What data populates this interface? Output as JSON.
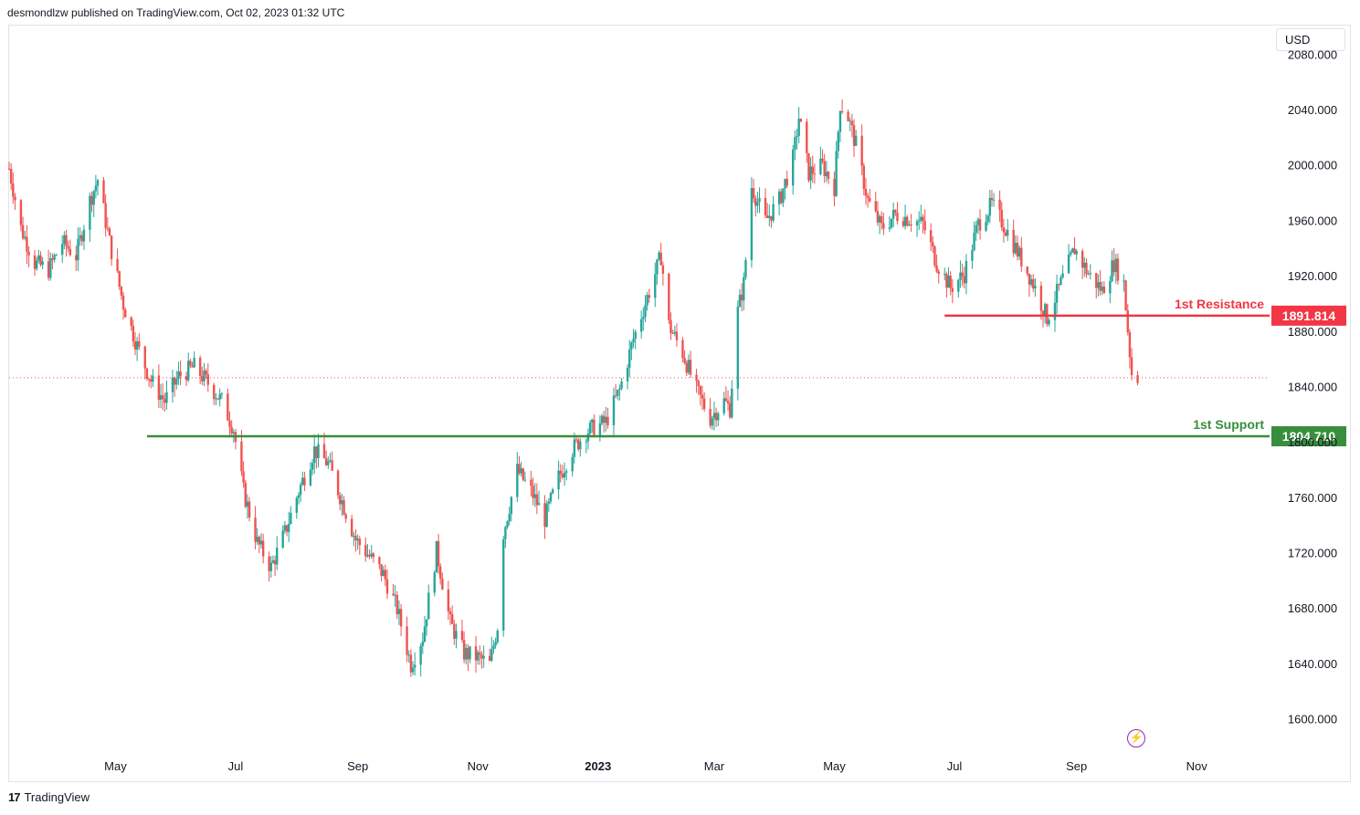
{
  "header": {
    "text": "desmondlzw published on TradingView.com, Oct 02, 2023 01:32 UTC"
  },
  "currency": {
    "label": "USD"
  },
  "footer": {
    "brand": "TradingView",
    "logo_glyph": "17"
  },
  "colors": {
    "up": "#26a69a",
    "down": "#ef5350",
    "resistance": "#f23645",
    "support": "#388e3c",
    "last_price": "#ef5350",
    "axis_text": "#131722",
    "icon": "#9c27b0"
  },
  "icons": {
    "bolt": "lightning-icon"
  },
  "chart_data": {
    "type": "candlestick",
    "title": "",
    "xlabel": "",
    "ylabel": "",
    "ylim": [
      1578,
      2100
    ],
    "y_ticks": [
      "2080.000",
      "2040.000",
      "2000.000",
      "1960.000",
      "1920.000",
      "1880.000",
      "1840.000",
      "1800.000",
      "1760.000",
      "1720.000",
      "1680.000",
      "1640.000",
      "1600.000"
    ],
    "y_tick_values": [
      2080,
      2040,
      2000,
      1960,
      1920,
      1880,
      1840,
      1800,
      1760,
      1720,
      1680,
      1640,
      1600
    ],
    "x_ticks": [
      {
        "label": "May",
        "date": "2022-05-01",
        "bold": false
      },
      {
        "label": "Jul",
        "date": "2022-07-01",
        "bold": false
      },
      {
        "label": "Sep",
        "date": "2022-09-01",
        "bold": false
      },
      {
        "label": "Nov",
        "date": "2022-11-01",
        "bold": false
      },
      {
        "label": "2023",
        "date": "2023-01-01",
        "bold": true
      },
      {
        "label": "Mar",
        "date": "2023-03-01",
        "bold": false
      },
      {
        "label": "May",
        "date": "2023-05-01",
        "bold": false
      },
      {
        "label": "Jul",
        "date": "2023-07-01",
        "bold": false
      },
      {
        "label": "Sep",
        "date": "2023-09-01",
        "bold": false
      },
      {
        "label": "Nov",
        "date": "2023-11-01",
        "bold": false
      }
    ],
    "x_range": [
      "2022-03-08",
      "2023-12-08"
    ],
    "close_path": [
      [
        "2022-03-08",
        1998
      ],
      [
        "2022-03-14",
        1955
      ],
      [
        "2022-03-21",
        1930
      ],
      [
        "2022-03-28",
        1925
      ],
      [
        "2022-04-04",
        1945
      ],
      [
        "2022-04-11",
        1935
      ],
      [
        "2022-04-18",
        1975
      ],
      [
        "2022-04-22",
        1990
      ],
      [
        "2022-04-28",
        1945
      ],
      [
        "2022-05-05",
        1900
      ],
      [
        "2022-05-12",
        1870
      ],
      [
        "2022-05-19",
        1845
      ],
      [
        "2022-05-26",
        1830
      ],
      [
        "2022-06-02",
        1848
      ],
      [
        "2022-06-10",
        1855
      ],
      [
        "2022-06-17",
        1843
      ],
      [
        "2022-06-24",
        1830
      ],
      [
        "2022-06-30",
        1810
      ],
      [
        "2022-07-05",
        1765
      ],
      [
        "2022-07-12",
        1728
      ],
      [
        "2022-07-19",
        1710
      ],
      [
        "2022-07-26",
        1735
      ],
      [
        "2022-08-02",
        1765
      ],
      [
        "2022-08-10",
        1795
      ],
      [
        "2022-08-17",
        1785
      ],
      [
        "2022-08-24",
        1758
      ],
      [
        "2022-08-31",
        1730
      ],
      [
        "2022-09-07",
        1718
      ],
      [
        "2022-09-14",
        1705
      ],
      [
        "2022-09-21",
        1680
      ],
      [
        "2022-09-28",
        1640
      ],
      [
        "2022-10-04",
        1660
      ],
      [
        "2022-10-11",
        1722
      ],
      [
        "2022-10-18",
        1670
      ],
      [
        "2022-10-25",
        1648
      ],
      [
        "2022-11-01",
        1645
      ],
      [
        "2022-11-07",
        1640
      ],
      [
        "2022-11-11",
        1668
      ],
      [
        "2022-11-14",
        1735
      ],
      [
        "2022-11-21",
        1780
      ],
      [
        "2022-11-28",
        1765
      ],
      [
        "2022-12-05",
        1745
      ],
      [
        "2022-12-12",
        1775
      ],
      [
        "2022-12-19",
        1795
      ],
      [
        "2022-12-26",
        1808
      ],
      [
        "2023-01-05",
        1815
      ],
      [
        "2023-01-12",
        1838
      ],
      [
        "2023-01-19",
        1875
      ],
      [
        "2023-01-26",
        1905
      ],
      [
        "2023-02-02",
        1935
      ],
      [
        "2023-02-06",
        1885
      ],
      [
        "2023-02-13",
        1865
      ],
      [
        "2023-02-20",
        1838
      ],
      [
        "2023-02-27",
        1818
      ],
      [
        "2023-03-06",
        1830
      ],
      [
        "2023-03-09",
        1825
      ],
      [
        "2023-03-13",
        1895
      ],
      [
        "2023-03-16",
        1915
      ],
      [
        "2023-03-20",
        1985
      ],
      [
        "2023-03-27",
        1960
      ],
      [
        "2023-04-03",
        1975
      ],
      [
        "2023-04-10",
        2005
      ],
      [
        "2023-04-13",
        2035
      ],
      [
        "2023-04-18",
        1995
      ],
      [
        "2023-04-25",
        2000
      ],
      [
        "2023-05-01",
        1985
      ],
      [
        "2023-05-04",
        2045
      ],
      [
        "2023-05-08",
        2035
      ],
      [
        "2023-05-12",
        2015
      ],
      [
        "2023-05-18",
        1975
      ],
      [
        "2023-05-25",
        1955
      ],
      [
        "2023-06-01",
        1965
      ],
      [
        "2023-06-08",
        1962
      ],
      [
        "2023-06-15",
        1958
      ],
      [
        "2023-06-22",
        1930
      ],
      [
        "2023-06-29",
        1912
      ],
      [
        "2023-07-06",
        1922
      ],
      [
        "2023-07-13",
        1958
      ],
      [
        "2023-07-20",
        1972
      ],
      [
        "2023-07-27",
        1955
      ],
      [
        "2023-08-03",
        1935
      ],
      [
        "2023-08-10",
        1915
      ],
      [
        "2023-08-17",
        1890
      ],
      [
        "2023-08-24",
        1915
      ],
      [
        "2023-08-31",
        1940
      ],
      [
        "2023-09-07",
        1922
      ],
      [
        "2023-09-14",
        1910
      ],
      [
        "2023-09-20",
        1930
      ],
      [
        "2023-09-25",
        1915
      ],
      [
        "2023-09-28",
        1865
      ],
      [
        "2023-09-29",
        1850
      ],
      [
        "2023-10-02",
        1847
      ]
    ],
    "levels": [
      {
        "name": "1st Resistance",
        "value": 1891.814,
        "label": "1891.814",
        "start": "2023-06-26",
        "color": "#f23645"
      },
      {
        "name": "1st Support",
        "value": 1804.71,
        "label": "1804.710",
        "start": "2022-05-17",
        "color": "#388e3c"
      }
    ],
    "last_price": 1847,
    "grid": false,
    "legend": "none"
  }
}
